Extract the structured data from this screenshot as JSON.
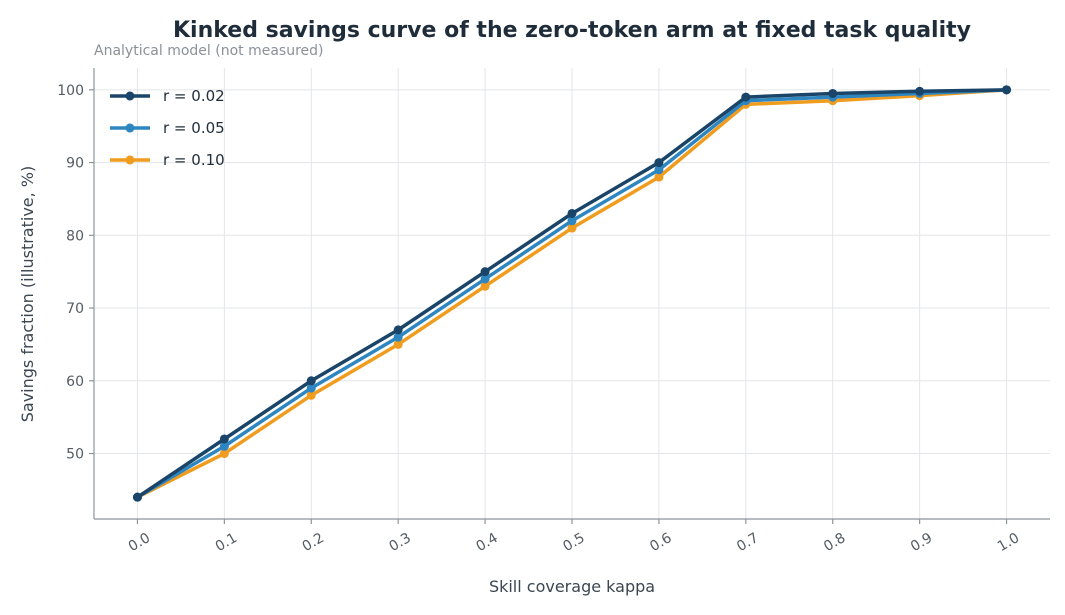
{
  "chart_data": {
    "type": "line",
    "title": "Kinked savings curve of the zero-token arm at fixed task quality",
    "subtitle": "Analytical model (not measured)",
    "xlabel": "Skill coverage kappa",
    "ylabel": "Savings fraction (illustrative, %)",
    "x": [
      0.0,
      0.1,
      0.2,
      0.3,
      0.4,
      0.5,
      0.6,
      0.7,
      0.8,
      0.9,
      1.0
    ],
    "x_tick_labels": [
      "0.0",
      "0.1",
      "0.2",
      "0.3",
      "0.4",
      "0.5",
      "0.6",
      "0.7",
      "0.8",
      "0.9",
      "1.0"
    ],
    "y_ticks": [
      50,
      60,
      70,
      80,
      90,
      100
    ],
    "xlim": [
      -0.05,
      1.05
    ],
    "ylim": [
      41,
      103
    ],
    "grid": true,
    "legend_position": "top-left",
    "series": [
      {
        "name": "r = 0.02",
        "color": "#1a4568",
        "values": [
          44,
          52,
          60,
          67,
          75,
          83,
          90,
          99,
          99.5,
          99.8,
          100
        ]
      },
      {
        "name": "r = 0.05",
        "color": "#2e86c1",
        "values": [
          44,
          51,
          59,
          66,
          74,
          82,
          89,
          98.5,
          99,
          99.5,
          100
        ]
      },
      {
        "name": "r = 0.10",
        "color": "#f09c1e",
        "values": [
          44,
          50,
          58,
          65,
          73,
          81,
          88,
          98,
          98.5,
          99.2,
          100
        ]
      }
    ]
  }
}
